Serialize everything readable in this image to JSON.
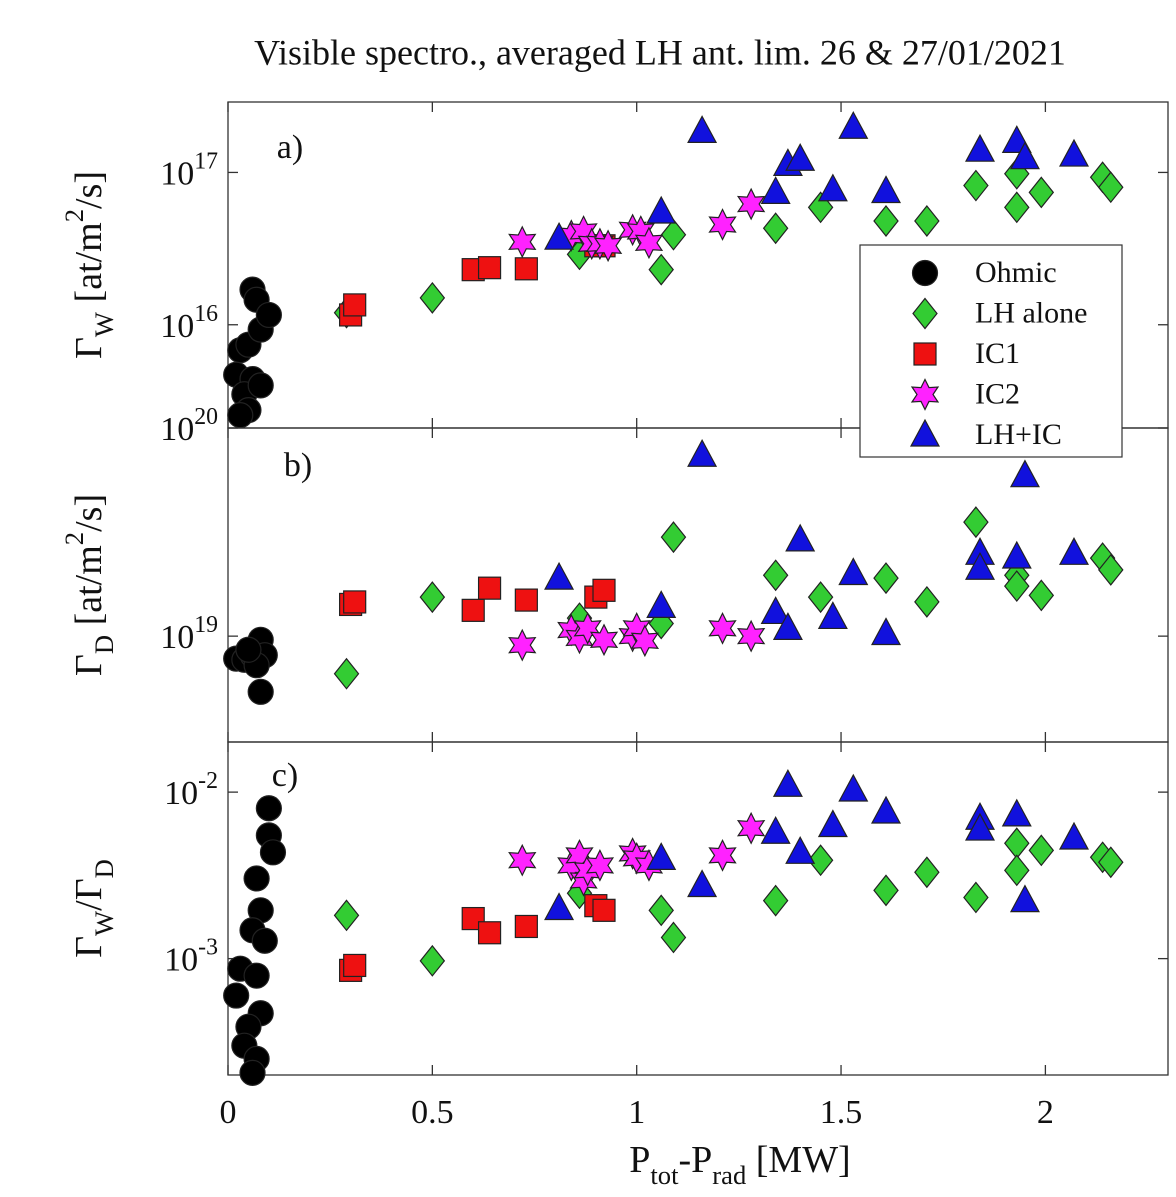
{
  "chart_data": [
    {
      "type": "scatter",
      "title": "Visible spectro., averaged LH ant. lim. 26 & 27/01/2021",
      "annotation": "a)",
      "ylabel": "Γ_W [at/m^2/s]",
      "log_y": true,
      "legend": "upper right",
      "xlim": [
        0,
        2.3
      ],
      "ylim": [
        2100000000000000.0,
        2.9e+17
      ],
      "yticks": [
        {
          "value": 1e+16,
          "label": "10^{16}"
        },
        {
          "value": 1e+17,
          "label": "10^{17}"
        }
      ],
      "series": [
        {
          "name": "Ohmic",
          "color": "#000000",
          "marker": "circle",
          "x": [
            0.06,
            0.07,
            0.03,
            0.05,
            0.08,
            0.1,
            0.02,
            0.06,
            0.04,
            0.08,
            0.05,
            0.03
          ],
          "values": [
            1.7e+16,
            1.46e+16,
            6800000000000000.0,
            7400000000000000.0,
            9300000000000000.0,
            1.16e+16,
            4700000000000000.0,
            4400000000000000.0,
            3500000000000000.0,
            4000000000000000.0,
            2750000000000000.0,
            2550000000000000.0
          ]
        },
        {
          "name": "LH alone",
          "color": "#33cc33",
          "marker": "diamond",
          "x": [
            0.29,
            0.5,
            0.86,
            1.06,
            1.09,
            1.34,
            1.45,
            1.61,
            1.71,
            1.83,
            1.93,
            1.93,
            1.99,
            2.14,
            2.16
          ],
          "values": [
            1.2e+16,
            1.5e+16,
            2.9e+16,
            2.3e+16,
            3.9e+16,
            4.3e+16,
            5.9e+16,
            4.8e+16,
            4.8e+16,
            8.2e+16,
            9.8e+16,
            5.9e+16,
            7.4e+16,
            9.3e+16,
            8e+16
          ]
        },
        {
          "name": "IC1",
          "color": "#ee1111",
          "marker": "square",
          "x": [
            0.3,
            0.31,
            0.6,
            0.64,
            0.73,
            0.9,
            0.92
          ],
          "values": [
            1.16e+16,
            1.35e+16,
            2.3e+16,
            2.37e+16,
            2.33e+16,
            3.3e+16,
            3.3e+16
          ]
        },
        {
          "name": "IC2",
          "color": "#ff22ff",
          "marker": "star",
          "x": [
            0.72,
            0.84,
            0.87,
            0.89,
            0.91,
            0.93,
            0.99,
            1.01,
            1.03,
            1.21,
            1.28
          ],
          "values": [
            3.5e+16,
            3.85e+16,
            4.1e+16,
            3.4e+16,
            3.4e+16,
            3.3e+16,
            4.2e+16,
            4.1e+16,
            3.45e+16,
            4.55e+16,
            6.2e+16
          ]
        },
        {
          "name": "LH+IC",
          "color": "#1111dd",
          "marker": "triangle",
          "x": [
            0.81,
            1.06,
            1.16,
            1.34,
            1.37,
            1.4,
            1.48,
            1.53,
            1.61,
            1.84,
            1.93,
            1.95,
            2.07
          ],
          "values": [
            3.7e+16,
            5.5e+16,
            1.86e+17,
            7.4e+16,
            1.13e+17,
            1.22e+17,
            7.7e+16,
            1.98e+17,
            7.5e+16,
            1.4e+17,
            1.6e+17,
            1.25e+17,
            1.3e+17
          ]
        }
      ]
    },
    {
      "type": "scatter",
      "annotation": "b)",
      "ylabel": "Γ_D [at/m^2/s]",
      "log_y": true,
      "xlim": [
        0,
        2.3
      ],
      "ylim": [
        3.1e+18,
        1e+20
      ],
      "yticks": [
        {
          "value": 1e+19,
          "label": "10^{19}"
        },
        {
          "value": 1e+20,
          "label": "10^{20}"
        }
      ],
      "series": [
        {
          "color": "#000000",
          "marker": "circle",
          "x": [
            0.02,
            0.04,
            0.06,
            0.08,
            0.09,
            0.07,
            0.08,
            0.05
          ],
          "values": [
            7.8e+18,
            7.7e+18,
            8.1e+18,
            9.6e+18,
            8.1e+18,
            7.25e+18,
            5.4e+18,
            8.6e+18
          ]
        },
        {
          "color": "#33cc33",
          "marker": "diamond",
          "x": [
            0.29,
            0.5,
            0.86,
            1.06,
            1.09,
            1.34,
            1.45,
            1.61,
            1.71,
            1.83,
            1.93,
            1.93,
            1.99,
            2.14,
            2.16
          ],
          "values": [
            6.6e+18,
            1.54e+19,
            1.22e+19,
            1.15e+19,
            2.99e+19,
            1.96e+19,
            1.54e+19,
            1.9e+19,
            1.46e+19,
            3.53e+19,
            1.96e+19,
            1.74e+19,
            1.57e+19,
            2.37e+19,
            2.08e+19
          ]
        },
        {
          "color": "#ee1111",
          "marker": "square",
          "x": [
            0.3,
            0.31,
            0.6,
            0.64,
            0.73,
            0.9,
            0.92
          ],
          "values": [
            1.42e+19,
            1.46e+19,
            1.33e+19,
            1.7e+19,
            1.49e+19,
            1.54e+19,
            1.66e+19
          ]
        },
        {
          "color": "#ff22ff",
          "marker": "star",
          "x": [
            0.72,
            0.84,
            0.86,
            0.88,
            0.92,
            0.99,
            1.0,
            1.02,
            1.21,
            1.28
          ],
          "values": [
            9.05e+18,
            1.07e+19,
            9.8e+18,
            1.09e+19,
            9.6e+18,
            1e+19,
            1.09e+19,
            9.5e+18,
            1.09e+19,
            1e+19
          ]
        },
        {
          "color": "#1111dd",
          "marker": "triangle",
          "x": [
            0.81,
            1.06,
            1.16,
            1.34,
            1.37,
            1.4,
            1.48,
            1.53,
            1.61,
            1.84,
            1.84,
            1.93,
            1.95,
            2.07
          ],
          "values": [
            1.9e+19,
            1.39e+19,
            7.4e+19,
            1.3e+19,
            1.09e+19,
            2.9e+19,
            1.23e+19,
            2e+19,
            1.03e+19,
            2.5e+19,
            2.12e+19,
            2.4e+19,
            5.9e+19,
            2.5e+19
          ]
        }
      ]
    },
    {
      "type": "scatter",
      "annotation": "c)",
      "ylabel": "Γ_W/Γ_D",
      "xlabel": "P_{tot}-P_{rad} [MW]",
      "log_y": true,
      "xlim": [
        0,
        2.3
      ],
      "ylim": [
        0.0002,
        0.02
      ],
      "xticks": [
        0,
        0.5,
        1,
        1.5,
        2
      ],
      "yticks": [
        {
          "value": 0.001,
          "label": "10^{-3}"
        },
        {
          "value": 0.01,
          "label": "10^{-2}"
        }
      ],
      "series": [
        {
          "color": "#000000",
          "marker": "circle",
          "x": [
            0.1,
            0.1,
            0.11,
            0.07,
            0.08,
            0.06,
            0.09,
            0.03,
            0.07,
            0.02,
            0.08,
            0.05,
            0.04,
            0.07,
            0.06
          ],
          "values": [
            0.008,
            0.0055,
            0.00435,
            0.00303,
            0.00195,
            0.00148,
            0.00128,
            0.00087,
            0.00079,
            0.0006,
            0.00047,
            0.00039,
            0.0003,
            0.00025,
            0.000206
          ]
        },
        {
          "color": "#33cc33",
          "marker": "diamond",
          "x": [
            0.29,
            0.5,
            0.86,
            1.06,
            1.09,
            1.34,
            1.45,
            1.61,
            1.71,
            1.83,
            1.93,
            1.93,
            1.99,
            2.14,
            2.16
          ],
          "values": [
            0.00182,
            0.00097,
            0.00247,
            0.00195,
            0.00134,
            0.00223,
            0.0039,
            0.00257,
            0.0033,
            0.00233,
            0.00493,
            0.00339,
            0.00447,
            0.00406,
            0.00379
          ]
        },
        {
          "color": "#ee1111",
          "marker": "square",
          "x": [
            0.3,
            0.31,
            0.6,
            0.64,
            0.73,
            0.9,
            0.92
          ],
          "values": [
            0.00085,
            0.00091,
            0.00174,
            0.00143,
            0.00156,
            0.00208,
            0.00195
          ]
        },
        {
          "color": "#ff22ff",
          "marker": "star",
          "x": [
            0.72,
            0.84,
            0.86,
            0.87,
            0.88,
            0.91,
            0.99,
            1.0,
            1.03,
            1.21,
            1.28
          ],
          "values": [
            0.0039,
            0.00363,
            0.00417,
            0.00295,
            0.00339,
            0.00363,
            0.00428,
            0.004,
            0.00363,
            0.00417,
            0.00607
          ]
        },
        {
          "color": "#1111dd",
          "marker": "triangle",
          "x": [
            0.81,
            1.06,
            1.16,
            1.34,
            1.37,
            1.4,
            1.48,
            1.53,
            1.61,
            1.84,
            1.84,
            1.93,
            1.95,
            2.07
          ],
          "values": [
            0.002,
            0.004,
            0.00275,
            0.00574,
            0.011,
            0.00435,
            0.0063,
            0.0103,
            0.0076,
            0.00697,
            0.006,
            0.0073,
            0.00223,
            0.0053
          ]
        }
      ]
    }
  ]
}
